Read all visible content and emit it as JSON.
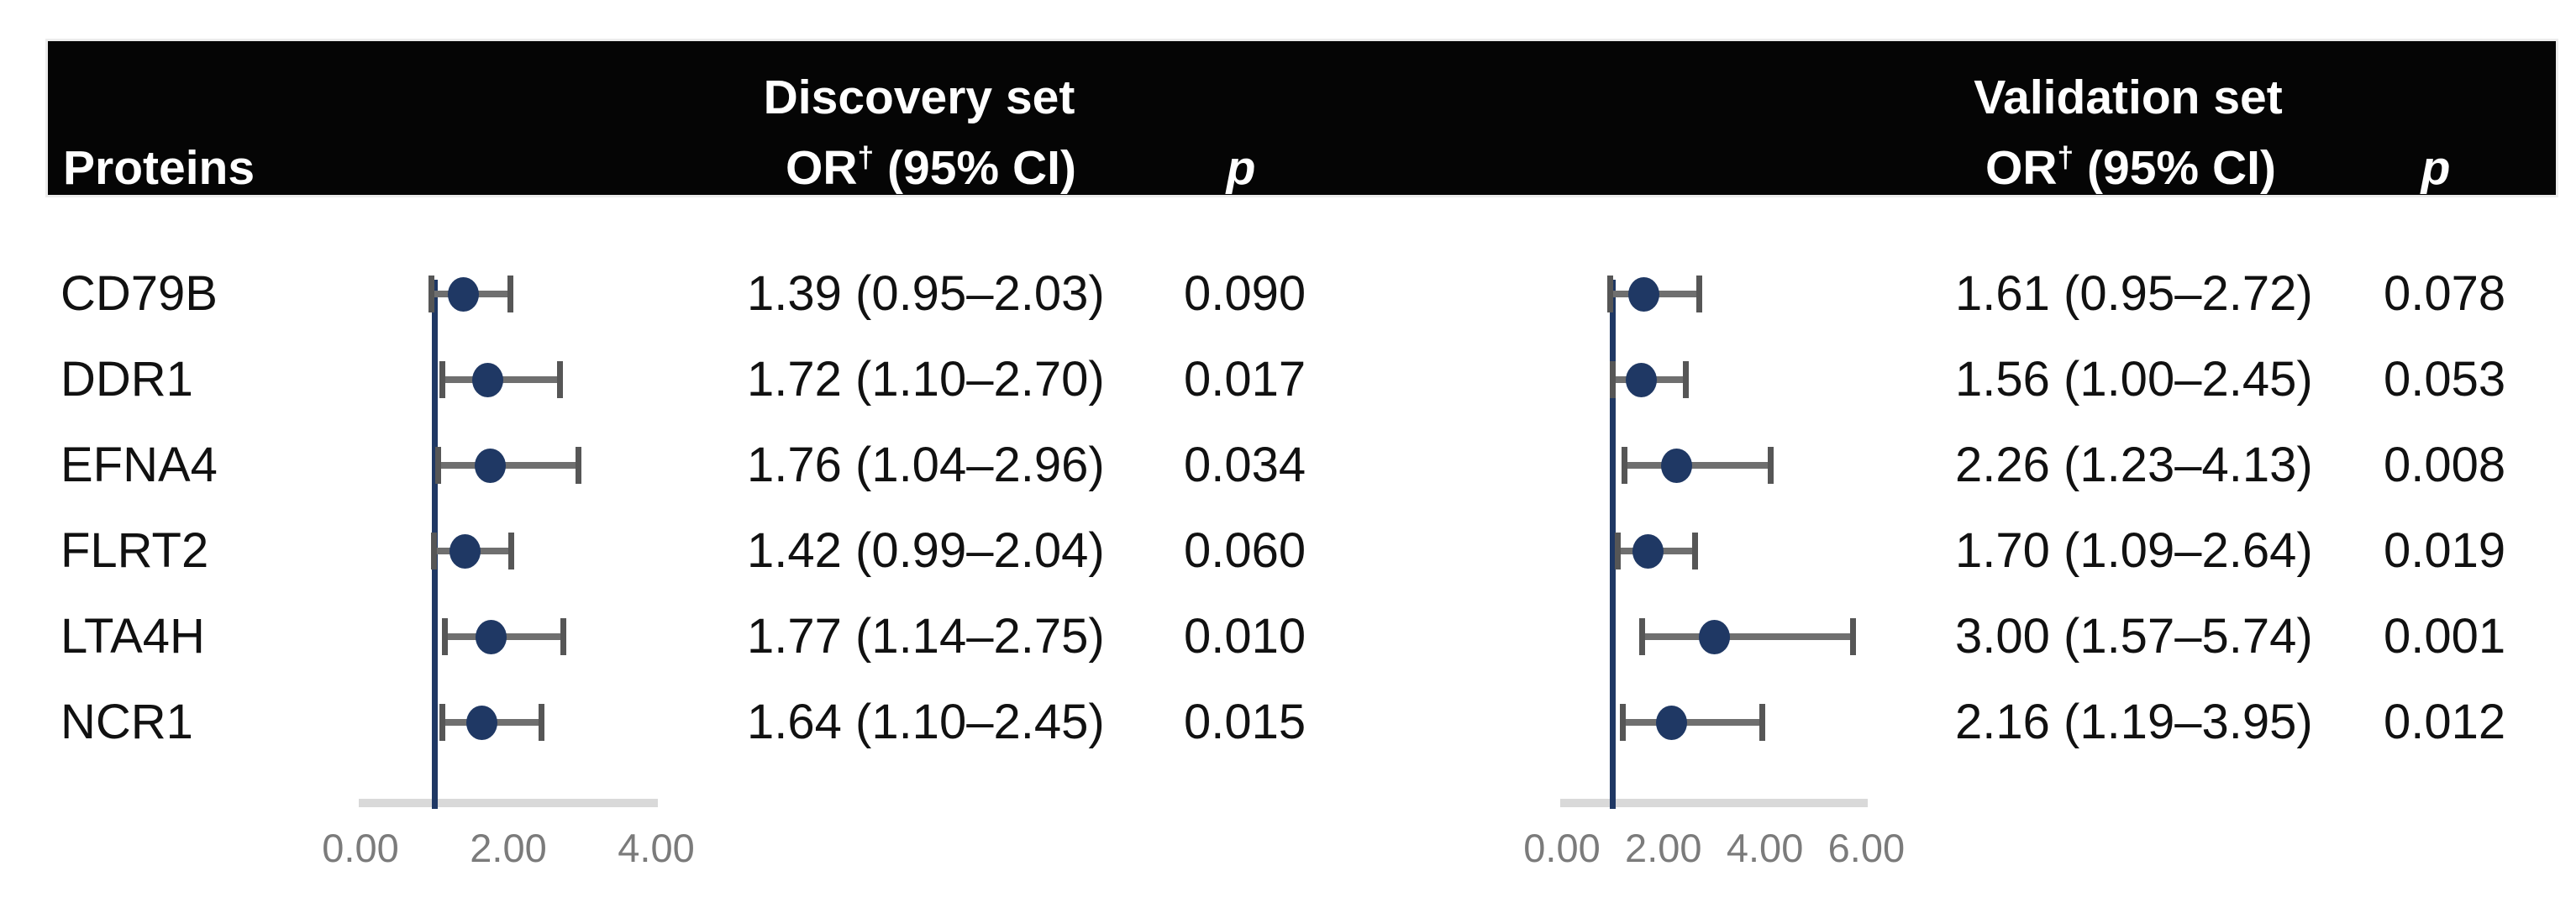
{
  "header": {
    "proteins_label": "Proteins",
    "discovery": {
      "title": "Discovery set",
      "or_label_main": "OR",
      "or_label_sup": "†",
      "or_label_rest": " (95% CI)",
      "p_label": "p"
    },
    "validation": {
      "title": "Validation set",
      "or_label_main": "OR",
      "or_label_sup": "†",
      "or_label_rest": " (95% CI)",
      "p_label": "p"
    }
  },
  "colors": {
    "marker_navy": "#1f3864",
    "refline_navy": "#1f3864",
    "whisker_gray": "#6f6f6f",
    "axis_gray": "#d9d9d9",
    "tick_gray": "#7b7b7b",
    "header_bg": "#050505",
    "header_text": "#ffffff"
  },
  "chart_data": {
    "type": "scatter",
    "subtype": "forest-plot",
    "proteins": [
      "CD79B",
      "DDR1",
      "EFNA4",
      "FLRT2",
      "LTA4H",
      "NCR1"
    ],
    "ref_line_value": 1.0,
    "panels": [
      {
        "name": "Discovery set",
        "axis_range": [
          0,
          4
        ],
        "tick_values": [
          0,
          2,
          4
        ],
        "tick_labels": [
          "0.00",
          "2.00",
          "4.00"
        ],
        "rows": [
          {
            "protein": "CD79B",
            "or": 1.39,
            "ci_low": 0.95,
            "ci_high": 2.03,
            "or_text": "1.39 (0.95–2.03)",
            "p_text": "0.090"
          },
          {
            "protein": "DDR1",
            "or": 1.72,
            "ci_low": 1.1,
            "ci_high": 2.7,
            "or_text": "1.72 (1.10–2.70)",
            "p_text": "0.017"
          },
          {
            "protein": "EFNA4",
            "or": 1.76,
            "ci_low": 1.04,
            "ci_high": 2.96,
            "or_text": "1.76 (1.04–2.96)",
            "p_text": "0.034"
          },
          {
            "protein": "FLRT2",
            "or": 1.42,
            "ci_low": 0.99,
            "ci_high": 2.04,
            "or_text": "1.42 (0.99–2.04)",
            "p_text": "0.060"
          },
          {
            "protein": "LTA4H",
            "or": 1.77,
            "ci_low": 1.14,
            "ci_high": 2.75,
            "or_text": "1.77 (1.14–2.75)",
            "p_text": "0.010"
          },
          {
            "protein": "NCR1",
            "or": 1.64,
            "ci_low": 1.1,
            "ci_high": 2.45,
            "or_text": "1.64 (1.10–2.45)",
            "p_text": "0.015"
          }
        ]
      },
      {
        "name": "Validation set",
        "axis_range": [
          0,
          6
        ],
        "tick_values": [
          0,
          2,
          4,
          6
        ],
        "tick_labels": [
          "0.00",
          "2.00",
          "4.00",
          "6.00"
        ],
        "rows": [
          {
            "protein": "CD79B",
            "or": 1.61,
            "ci_low": 0.95,
            "ci_high": 2.72,
            "or_text": "1.61 (0.95–2.72)",
            "p_text": "0.078"
          },
          {
            "protein": "DDR1",
            "or": 1.56,
            "ci_low": 1.0,
            "ci_high": 2.45,
            "or_text": "1.56 (1.00–2.45)",
            "p_text": "0.053"
          },
          {
            "protein": "EFNA4",
            "or": 2.26,
            "ci_low": 1.23,
            "ci_high": 4.13,
            "or_text": "2.26 (1.23–4.13)",
            "p_text": "0.008"
          },
          {
            "protein": "FLRT2",
            "or": 1.7,
            "ci_low": 1.09,
            "ci_high": 2.64,
            "or_text": "1.70 (1.09–2.64)",
            "p_text": "0.019"
          },
          {
            "protein": "LTA4H",
            "or": 3.0,
            "ci_low": 1.57,
            "ci_high": 5.74,
            "or_text": "3.00 (1.57–5.74)",
            "p_text": "0.001"
          },
          {
            "protein": "NCR1",
            "or": 2.16,
            "ci_low": 1.19,
            "ci_high": 3.95,
            "or_text": "2.16 (1.19–3.95)",
            "p_text": "0.012"
          }
        ]
      }
    ]
  }
}
